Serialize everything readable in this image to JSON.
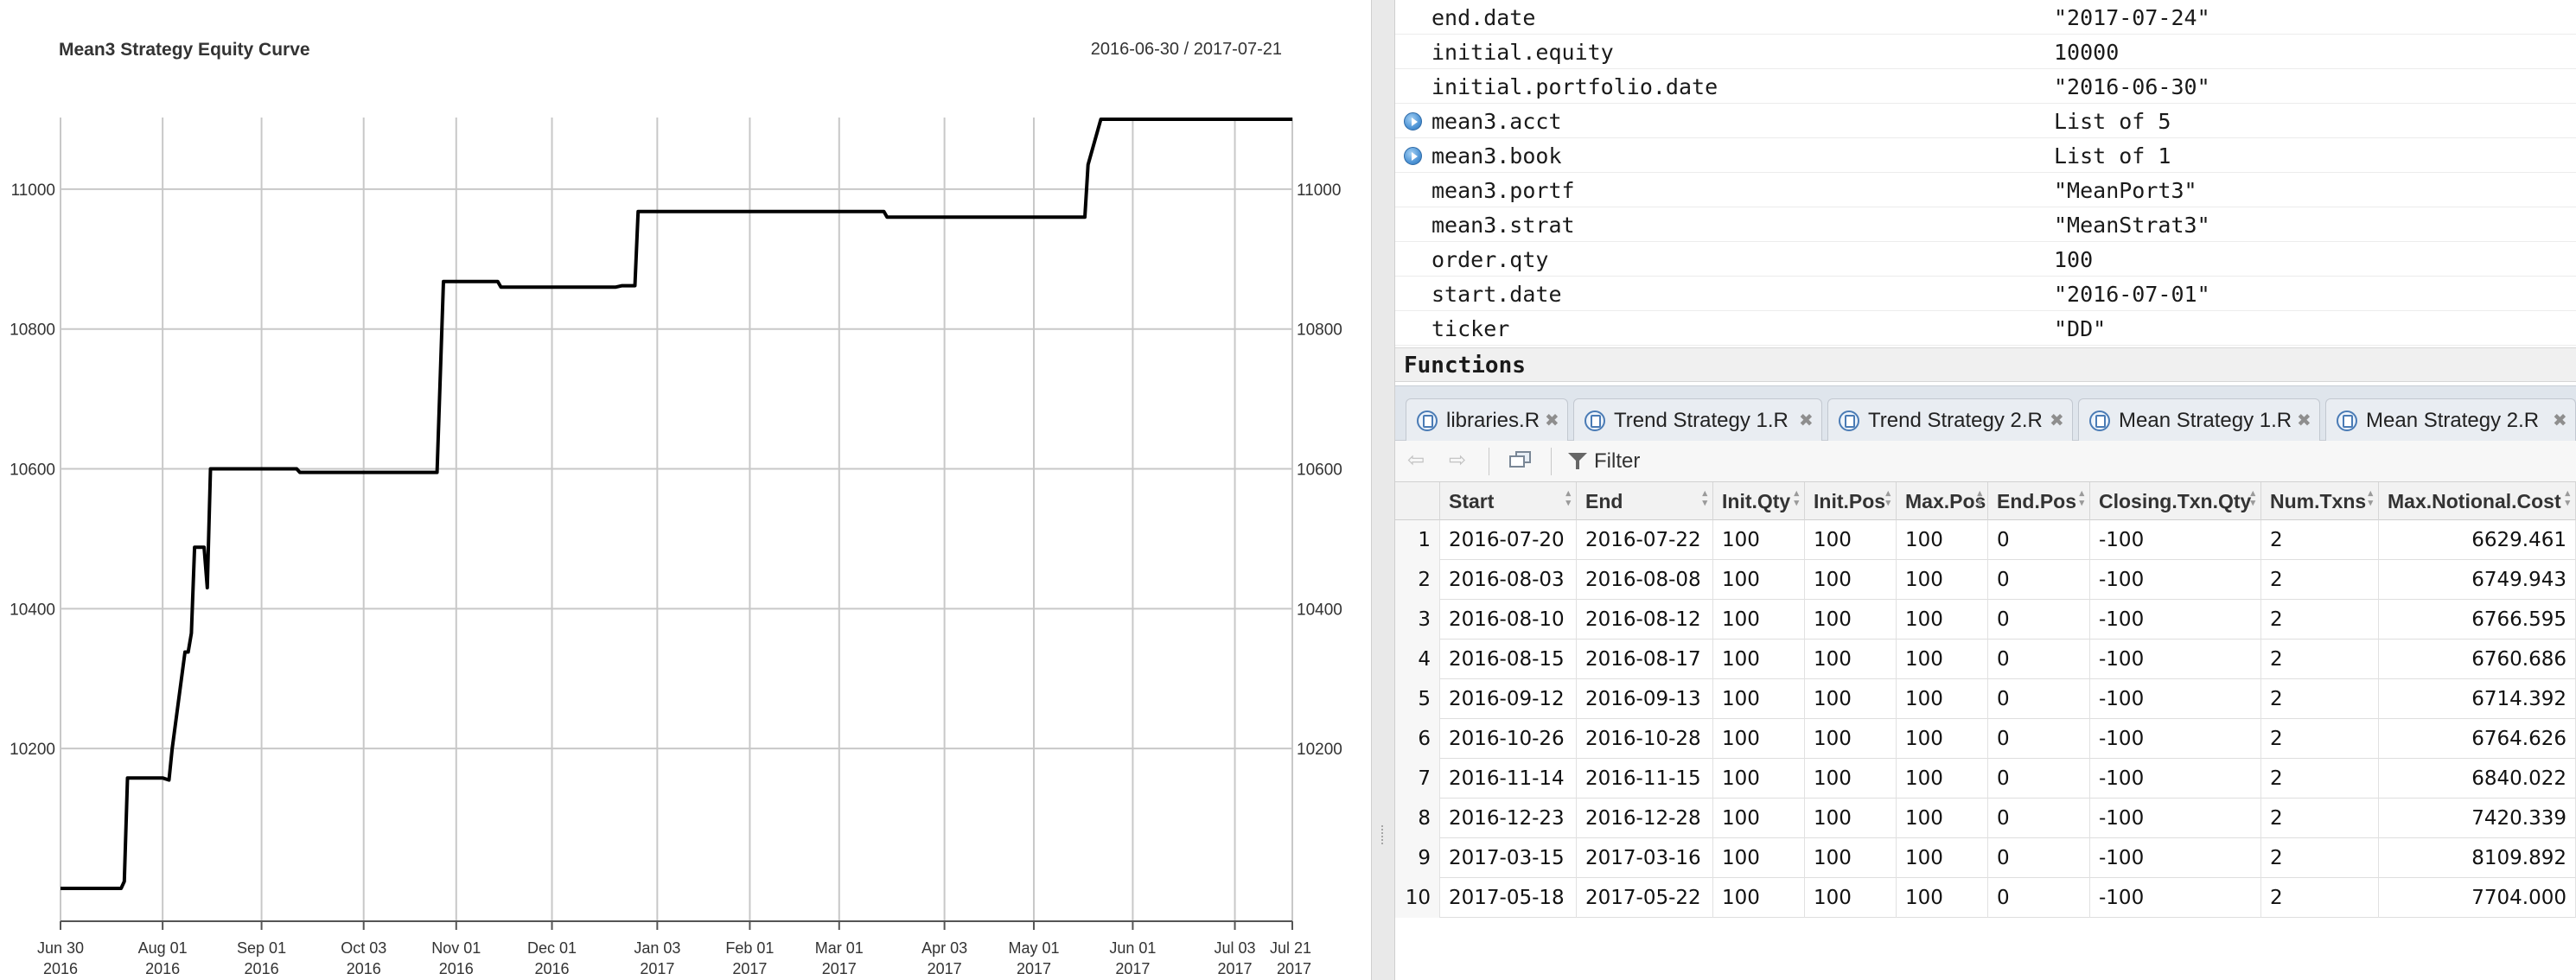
{
  "chart": {
    "title": "Mean3 Strategy Equity Curve",
    "date_range": "2016-06-30 / 2017-07-21"
  },
  "chart_data": {
    "type": "line",
    "title": "Mean3 Strategy Equity Curve",
    "xlabel": "",
    "ylabel": "",
    "x_range": [
      "2016-06-30",
      "2017-07-21"
    ],
    "ylim": [
      10000,
      11100
    ],
    "grid": true,
    "y_ticks": [
      10200,
      10400,
      10600,
      10800,
      11000
    ],
    "x_ticks": [
      {
        "date": "2016-06-30",
        "line1": "Jun 30",
        "line2": "2016"
      },
      {
        "date": "2016-08-01",
        "line1": "Aug 01",
        "line2": "2016"
      },
      {
        "date": "2016-09-01",
        "line1": "Sep 01",
        "line2": "2016"
      },
      {
        "date": "2016-10-03",
        "line1": "Oct 03",
        "line2": "2016"
      },
      {
        "date": "2016-11-01",
        "line1": "Nov 01",
        "line2": "2016"
      },
      {
        "date": "2016-12-01",
        "line1": "Dec 01",
        "line2": "2016"
      },
      {
        "date": "2017-01-03",
        "line1": "Jan 03",
        "line2": "2017"
      },
      {
        "date": "2017-02-01",
        "line1": "Feb 01",
        "line2": "2017"
      },
      {
        "date": "2017-03-01",
        "line1": "Mar 01",
        "line2": "2017"
      },
      {
        "date": "2017-04-03",
        "line1": "Apr 03",
        "line2": "2017"
      },
      {
        "date": "2017-05-01",
        "line1": "May 01",
        "line2": "2017"
      },
      {
        "date": "2017-06-01",
        "line1": "Jun 01",
        "line2": "2017"
      },
      {
        "date": "2017-07-03",
        "line1": "Jul 03",
        "line2": "2017"
      },
      {
        "date": "2017-07-21",
        "line1": "Jul 21",
        "line2": "2017"
      }
    ],
    "series": [
      {
        "color": "#000000",
        "points": [
          [
            "2016-06-30",
            10000
          ],
          [
            "2016-07-19",
            10000
          ],
          [
            "2016-07-20",
            10010
          ],
          [
            "2016-07-21",
            10158
          ],
          [
            "2016-08-01",
            10158
          ],
          [
            "2016-08-03",
            10155
          ],
          [
            "2016-08-04",
            10200
          ],
          [
            "2016-08-08",
            10338
          ],
          [
            "2016-08-09",
            10338
          ],
          [
            "2016-08-10",
            10365
          ],
          [
            "2016-08-11",
            10488
          ],
          [
            "2016-08-14",
            10488
          ],
          [
            "2016-08-15",
            10430
          ],
          [
            "2016-08-16",
            10600
          ],
          [
            "2016-09-12",
            10600
          ],
          [
            "2016-09-13",
            10595
          ],
          [
            "2016-10-26",
            10595
          ],
          [
            "2016-10-28",
            10868
          ],
          [
            "2016-11-14",
            10868
          ],
          [
            "2016-11-15",
            10860
          ],
          [
            "2016-12-21",
            10860
          ],
          [
            "2016-12-23",
            10862
          ],
          [
            "2016-12-27",
            10862
          ],
          [
            "2016-12-28",
            10968
          ],
          [
            "2017-03-15",
            10968
          ],
          [
            "2017-03-16",
            10960
          ],
          [
            "2017-05-17",
            10960
          ],
          [
            "2017-05-18",
            11035
          ],
          [
            "2017-05-22",
            11100
          ],
          [
            "2017-07-21",
            11100
          ]
        ]
      }
    ]
  },
  "env": {
    "rows": [
      {
        "name": "end.date",
        "value": "\"2017-07-24\"",
        "expandable": false
      },
      {
        "name": "initial.equity",
        "value": "10000",
        "expandable": false
      },
      {
        "name": "initial.portfolio.date",
        "value": "\"2016-06-30\"",
        "expandable": false
      },
      {
        "name": "mean3.acct",
        "value": "List of 5",
        "expandable": true
      },
      {
        "name": "mean3.book",
        "value": "List of 1",
        "expandable": true
      },
      {
        "name": "mean3.portf",
        "value": "\"MeanPort3\"",
        "expandable": false
      },
      {
        "name": "mean3.strat",
        "value": "\"MeanStrat3\"",
        "expandable": false
      },
      {
        "name": "order.qty",
        "value": "100",
        "expandable": false
      },
      {
        "name": "start.date",
        "value": "\"2016-07-01\"",
        "expandable": false
      },
      {
        "name": "ticker",
        "value": "\"DD\"",
        "expandable": false
      }
    ],
    "functions_header": "Functions"
  },
  "tabs": [
    {
      "label": "libraries.R",
      "close": "✖"
    },
    {
      "label": "Trend Strategy 1.R",
      "close": "✖"
    },
    {
      "label": "Trend Strategy 2.R",
      "close": "✖"
    },
    {
      "label": "Mean Strategy 1.R",
      "close": "✖"
    },
    {
      "label": "Mean Strategy 2.R",
      "close": "✖"
    }
  ],
  "toolbar": {
    "filter_label": "Filter",
    "back_arrow": "⇦",
    "forward_arrow": "⇨"
  },
  "table": {
    "columns": [
      "Start",
      "End",
      "Init.Qty",
      "Init.Pos",
      "Max.Pos",
      "End.Pos",
      "Closing.Txn.Qty",
      "Num.Txns",
      "Max.Notional.Cost"
    ],
    "rows": [
      [
        "1",
        "2016-07-20",
        "2016-07-22",
        "100",
        "100",
        "100",
        "0",
        "-100",
        "2",
        "6629.461"
      ],
      [
        "2",
        "2016-08-03",
        "2016-08-08",
        "100",
        "100",
        "100",
        "0",
        "-100",
        "2",
        "6749.943"
      ],
      [
        "3",
        "2016-08-10",
        "2016-08-12",
        "100",
        "100",
        "100",
        "0",
        "-100",
        "2",
        "6766.595"
      ],
      [
        "4",
        "2016-08-15",
        "2016-08-17",
        "100",
        "100",
        "100",
        "0",
        "-100",
        "2",
        "6760.686"
      ],
      [
        "5",
        "2016-09-12",
        "2016-09-13",
        "100",
        "100",
        "100",
        "0",
        "-100",
        "2",
        "6714.392"
      ],
      [
        "6",
        "2016-10-26",
        "2016-10-28",
        "100",
        "100",
        "100",
        "0",
        "-100",
        "2",
        "6764.626"
      ],
      [
        "7",
        "2016-11-14",
        "2016-11-15",
        "100",
        "100",
        "100",
        "0",
        "-100",
        "2",
        "6840.022"
      ],
      [
        "8",
        "2016-12-23",
        "2016-12-28",
        "100",
        "100",
        "100",
        "0",
        "-100",
        "2",
        "7420.339"
      ],
      [
        "9",
        "2017-03-15",
        "2017-03-16",
        "100",
        "100",
        "100",
        "0",
        "-100",
        "2",
        "8109.892"
      ],
      [
        "10",
        "2017-05-18",
        "2017-05-22",
        "100",
        "100",
        "100",
        "0",
        "-100",
        "2",
        "7704.000"
      ]
    ]
  }
}
